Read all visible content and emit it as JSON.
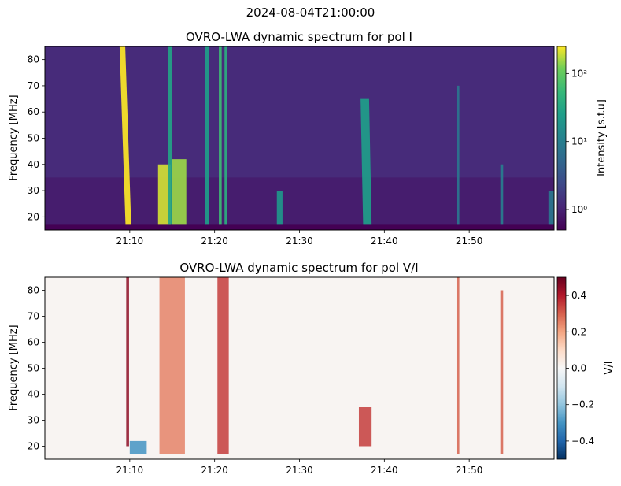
{
  "figure": {
    "suptitle": "2024-08-04T21:00:00"
  },
  "chart_data": [
    {
      "type": "heatmap",
      "title": "OVRO-LWA dynamic spectrum for pol I",
      "xlabel": "",
      "ylabel": "Frequency [MHz]",
      "xlim": [
        "21:00:00",
        "22:00:00"
      ],
      "ylim": [
        15,
        85
      ],
      "xticks": [
        "21:10",
        "21:20",
        "21:30",
        "21:40",
        "21:50"
      ],
      "yticks": [
        20,
        30,
        40,
        50,
        60,
        70,
        80
      ],
      "grid": false,
      "colormap": "viridis",
      "colorbar": {
        "label": "Intensity [s.f.u]",
        "scale": "log",
        "range": [
          0.5,
          250
        ],
        "ticks": [
          {
            "value": 1,
            "label": "10⁰"
          },
          {
            "value": 10,
            "label": "10¹"
          },
          {
            "value": 100,
            "label": "10²"
          }
        ]
      },
      "background_level": 1.2,
      "bursts": [
        {
          "start": "21:09:30",
          "end": "21:10:10",
          "fmin": 17,
          "fmax": 85,
          "peak": 250,
          "drift_min": -0.7
        },
        {
          "start": "21:13:20",
          "end": "21:14:50",
          "fmin": 17,
          "fmax": 40,
          "peak": 200,
          "drift_min": 0
        },
        {
          "start": "21:15:00",
          "end": "21:16:40",
          "fmin": 17,
          "fmax": 42,
          "peak": 150,
          "drift_min": 0
        },
        {
          "start": "21:14:30",
          "end": "21:15:00",
          "fmin": 17,
          "fmax": 85,
          "peak": 30,
          "drift_min": 0
        },
        {
          "start": "21:18:50",
          "end": "21:19:20",
          "fmin": 17,
          "fmax": 85,
          "peak": 25,
          "drift_min": 0
        },
        {
          "start": "21:20:30",
          "end": "21:20:50",
          "fmin": 17,
          "fmax": 85,
          "peak": 60,
          "drift_min": 0
        },
        {
          "start": "21:21:10",
          "end": "21:21:30",
          "fmin": 17,
          "fmax": 85,
          "peak": 40,
          "drift_min": 0
        },
        {
          "start": "21:27:20",
          "end": "21:28:00",
          "fmin": 17,
          "fmax": 30,
          "peak": 20,
          "drift_min": 0
        },
        {
          "start": "21:37:30",
          "end": "21:38:30",
          "fmin": 17,
          "fmax": 65,
          "peak": 25,
          "drift_min": -0.3
        },
        {
          "start": "21:48:30",
          "end": "21:48:50",
          "fmin": 17,
          "fmax": 70,
          "peak": 8,
          "drift_min": 0
        },
        {
          "start": "21:53:40",
          "end": "21:54:00",
          "fmin": 17,
          "fmax": 40,
          "peak": 10,
          "drift_min": 0
        },
        {
          "start": "21:59:20",
          "end": "21:59:59",
          "fmin": 17,
          "fmax": 30,
          "peak": 8,
          "drift_min": 0
        }
      ]
    },
    {
      "type": "heatmap",
      "title": "OVRO-LWA dynamic spectrum for pol V/I",
      "xlabel": "",
      "ylabel": "Frequency [MHz]",
      "xlim": [
        "21:00:00",
        "22:00:00"
      ],
      "ylim": [
        15,
        85
      ],
      "xticks": [
        "21:10",
        "21:20",
        "21:30",
        "21:40",
        "21:50"
      ],
      "yticks": [
        20,
        30,
        40,
        50,
        60,
        70,
        80
      ],
      "grid": false,
      "colormap": "RdBu_r",
      "colorbar": {
        "label": "V/I",
        "scale": "linear",
        "range": [
          -0.5,
          0.5
        ],
        "ticks": [
          {
            "value": 0.4,
            "label": "0.4"
          },
          {
            "value": 0.2,
            "label": "0.2"
          },
          {
            "value": 0.0,
            "label": "0.0"
          },
          {
            "value": -0.2,
            "label": "−0.2"
          },
          {
            "value": -0.4,
            "label": "−0.4"
          }
        ]
      },
      "features": [
        {
          "start": "21:09:35",
          "end": "21:09:55",
          "fmin": 20,
          "fmax": 85,
          "value": 0.45
        },
        {
          "start": "21:10:00",
          "end": "21:12:00",
          "fmin": 17,
          "fmax": 22,
          "value": -0.3
        },
        {
          "start": "21:13:30",
          "end": "21:16:30",
          "fmin": 17,
          "fmax": 85,
          "value": 0.25
        },
        {
          "start": "21:20:20",
          "end": "21:21:40",
          "fmin": 17,
          "fmax": 85,
          "value": 0.35
        },
        {
          "start": "21:37:00",
          "end": "21:38:30",
          "fmin": 20,
          "fmax": 35,
          "value": 0.35
        },
        {
          "start": "21:48:30",
          "end": "21:48:50",
          "fmin": 17,
          "fmax": 85,
          "value": 0.3
        },
        {
          "start": "21:53:40",
          "end": "21:54:00",
          "fmin": 17,
          "fmax": 80,
          "value": 0.3
        }
      ]
    }
  ]
}
